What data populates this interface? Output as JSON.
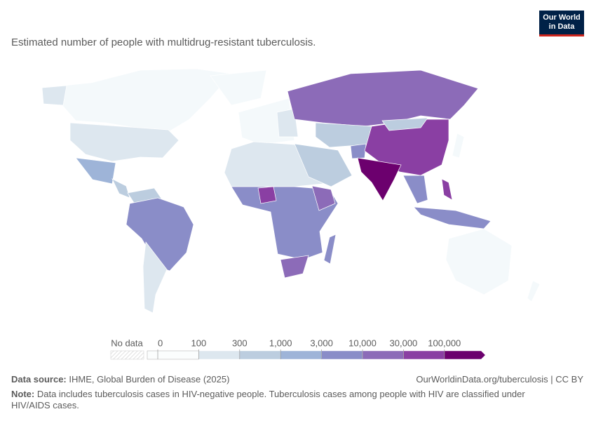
{
  "logo": [
    "Our World",
    "in Data"
  ],
  "title": "Estimated number of people with multidrug-resistant tuberculosis.",
  "legend": {
    "no_data": "No data",
    "ticks": [
      0,
      100,
      300,
      {
        "value": 1000,
        "label": "1,000"
      },
      {
        "value": 3000,
        "label": "3,000"
      },
      {
        "value": 10000,
        "label": "10,000"
      },
      {
        "value": 30000,
        "label": "30,000"
      },
      {
        "value": 100000,
        "label": "100,000"
      }
    ],
    "colors": [
      "#fbfdfd",
      "#dde7ef",
      "#bccddf",
      "#9eb4d8",
      "#8a8dc8",
      "#8c6bb8",
      "#8a3fa3",
      "#6c006e"
    ]
  },
  "footer": {
    "source_label": "Data source:",
    "source": "IHME, Global Burden of Disease (2025)",
    "url": "OurWorldinData.org/tuberculosis | CC BY",
    "note_label": "Note:",
    "note": "Data includes tuberculosis cases in HIV-negative people. Tuberculosis cases among people with HIV are classified under HIV/AIDS cases."
  }
}
